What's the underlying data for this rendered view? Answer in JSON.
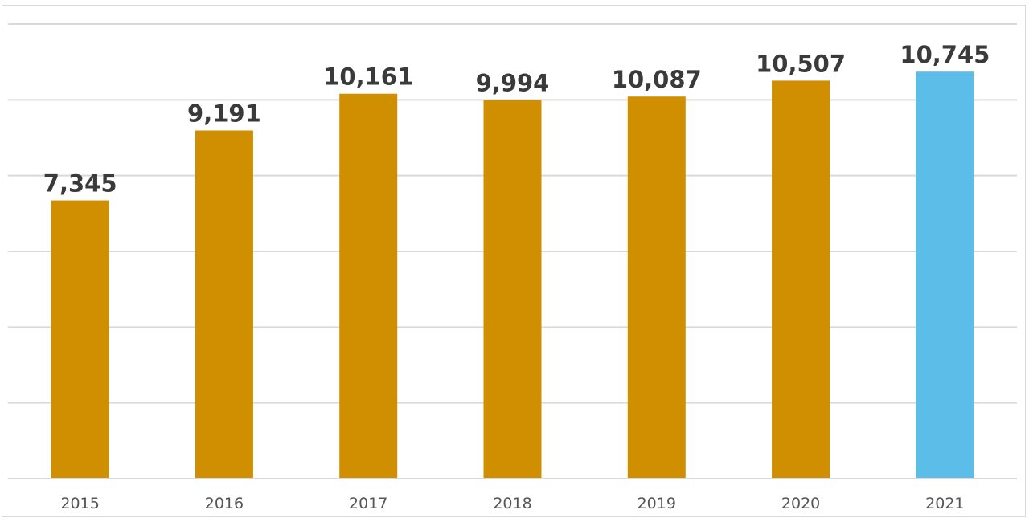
{
  "chart_data": {
    "type": "bar",
    "categories": [
      "2015",
      "2016",
      "2017",
      "2018",
      "2019",
      "2020",
      "2021"
    ],
    "values": [
      7345,
      9191,
      10161,
      9994,
      10087,
      10507,
      10745
    ],
    "data_labels": [
      "7,345",
      "9,191",
      "10,161",
      "9,994",
      "10,087",
      "10,507",
      "10,745"
    ],
    "title": "",
    "xlabel": "",
    "ylabel": "",
    "ylim": [
      0,
      12000
    ],
    "y_gridlines_every": 2000,
    "y_tick_labels_shown": false,
    "grid": true,
    "legend": "none",
    "colors": {
      "bar": "#d08f00",
      "highlight_bar": "#5bbde8",
      "highlight_category": "2021",
      "grid": "#d9d9d9"
    }
  }
}
